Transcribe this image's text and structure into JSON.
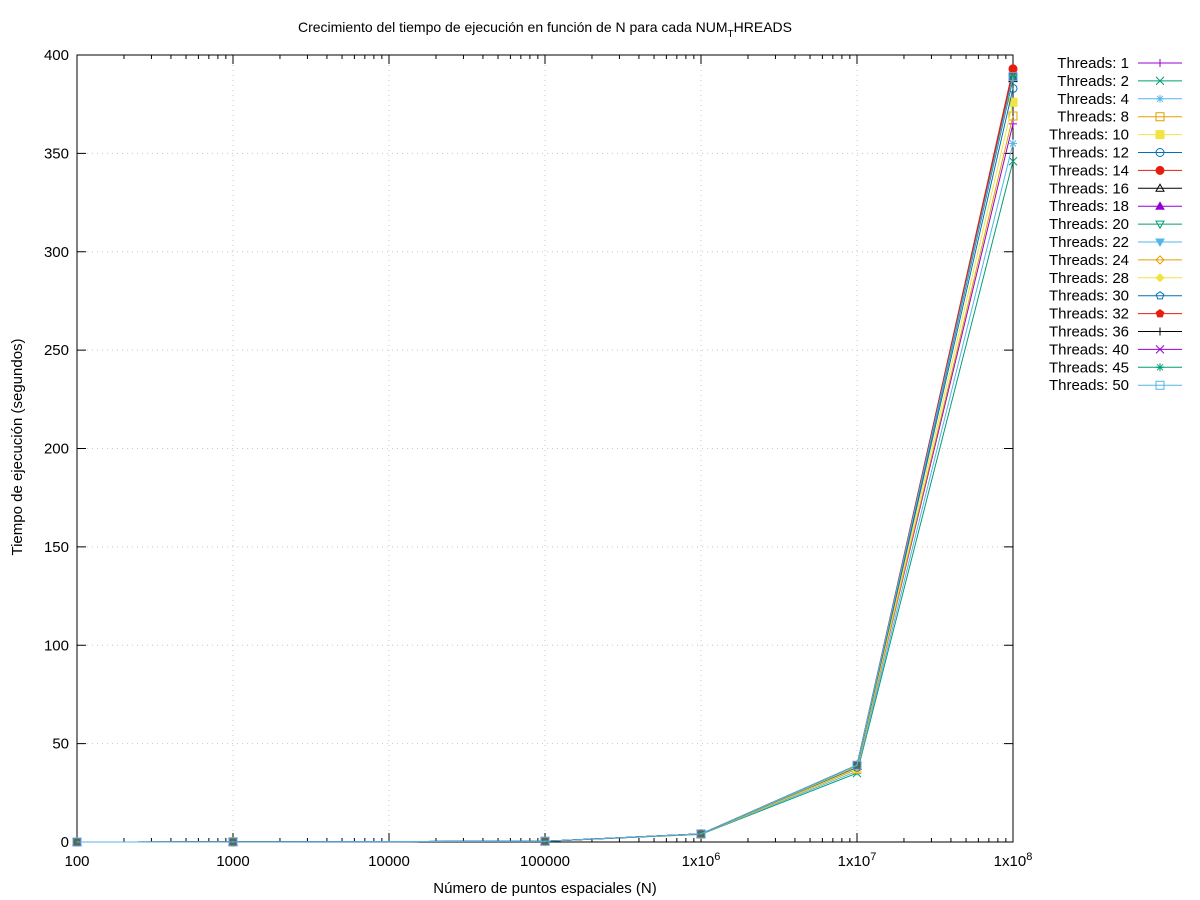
{
  "chart_data": {
    "type": "line",
    "title": {
      "main": "Crecimiento del tiempo de ejecución en función de N para cada NUM",
      "sub": "T",
      "rest": "HREADS"
    },
    "xlabel": "Número de puntos espaciales (N)",
    "ylabel": "Tiempo de ejecución (segundos)",
    "x_scale": "log",
    "xlim": [
      100,
      100000000
    ],
    "ylim": [
      0,
      400
    ],
    "grid": true,
    "legend_position": "outside-top-right",
    "x_ticks": [
      {
        "value": 100,
        "label": "100"
      },
      {
        "value": 1000,
        "label": "1000"
      },
      {
        "value": 10000,
        "label": "10000"
      },
      {
        "value": 100000,
        "label": "100000"
      },
      {
        "value": 1000000,
        "label": "1x10",
        "exp": "6"
      },
      {
        "value": 10000000,
        "label": "1x10",
        "exp": "7"
      },
      {
        "value": 100000000,
        "label": "1x10",
        "exp": "8"
      }
    ],
    "y_ticks": [
      {
        "value": 0,
        "label": "0"
      },
      {
        "value": 50,
        "label": "50"
      },
      {
        "value": 100,
        "label": "100"
      },
      {
        "value": 150,
        "label": "150"
      },
      {
        "value": 200,
        "label": "200"
      },
      {
        "value": 250,
        "label": "250"
      },
      {
        "value": 300,
        "label": "300"
      },
      {
        "value": 350,
        "label": "350"
      },
      {
        "value": 400,
        "label": "400"
      }
    ],
    "x": [
      100,
      1000,
      100000,
      1000000,
      10000000,
      100000000
    ],
    "series": [
      {
        "name": "Threads: 1",
        "color": "#9400d3",
        "marker": "plus",
        "values": [
          0.02,
          0.05,
          0.4,
          4.0,
          37.5,
          365
        ]
      },
      {
        "name": "Threads: 2",
        "color": "#009e73",
        "marker": "cross",
        "values": [
          0.02,
          0.05,
          0.4,
          3.9,
          35.0,
          346
        ]
      },
      {
        "name": "Threads: 4",
        "color": "#56b4e9",
        "marker": "asterisk",
        "values": [
          0.02,
          0.05,
          0.4,
          4.0,
          36.0,
          355
        ]
      },
      {
        "name": "Threads: 8",
        "color": "#e69f00",
        "marker": "square-open",
        "values": [
          0.02,
          0.05,
          0.4,
          4.0,
          37.0,
          369
        ]
      },
      {
        "name": "Threads: 10",
        "color": "#f0e442",
        "marker": "square-filled",
        "values": [
          0.02,
          0.05,
          0.4,
          4.0,
          37.5,
          376
        ]
      },
      {
        "name": "Threads: 12",
        "color": "#0072b2",
        "marker": "circle-open",
        "values": [
          0.02,
          0.05,
          0.4,
          4.1,
          38.0,
          383
        ]
      },
      {
        "name": "Threads: 14",
        "color": "#e51e10",
        "marker": "circle-filled",
        "values": [
          0.02,
          0.05,
          0.4,
          4.1,
          39.0,
          393
        ]
      },
      {
        "name": "Threads: 16",
        "color": "#000000",
        "marker": "triangle-open",
        "values": [
          0.02,
          0.05,
          0.4,
          4.1,
          38.5,
          388
        ]
      },
      {
        "name": "Threads: 18",
        "color": "#9400d3",
        "marker": "triangle-filled",
        "values": [
          0.02,
          0.05,
          0.4,
          4.1,
          38.5,
          389
        ]
      },
      {
        "name": "Threads: 20",
        "color": "#009e73",
        "marker": "itriangle-open",
        "values": [
          0.02,
          0.05,
          0.4,
          4.1,
          38.5,
          388
        ]
      },
      {
        "name": "Threads: 22",
        "color": "#56b4e9",
        "marker": "itriangle-filled",
        "values": [
          0.02,
          0.05,
          0.4,
          4.1,
          38.5,
          389
        ]
      },
      {
        "name": "Threads: 24",
        "color": "#e69f00",
        "marker": "diamond-open",
        "values": [
          0.02,
          0.05,
          0.4,
          4.1,
          38.5,
          390
        ]
      },
      {
        "name": "Threads: 28",
        "color": "#f0e442",
        "marker": "diamond-filled",
        "values": [
          0.02,
          0.05,
          0.4,
          4.1,
          38.5,
          390
        ]
      },
      {
        "name": "Threads: 30",
        "color": "#0072b2",
        "marker": "pentagon-open",
        "values": [
          0.02,
          0.05,
          0.4,
          4.1,
          39.0,
          390
        ]
      },
      {
        "name": "Threads: 32",
        "color": "#e51e10",
        "marker": "pentagon-filled",
        "values": [
          0.02,
          0.05,
          0.4,
          4.1,
          39.0,
          392
        ]
      },
      {
        "name": "Threads: 36",
        "color": "#000000",
        "marker": "plus",
        "values": [
          0.02,
          0.05,
          0.4,
          4.1,
          39.0,
          389
        ]
      },
      {
        "name": "Threads: 40",
        "color": "#9400d3",
        "marker": "cross",
        "values": [
          0.02,
          0.05,
          0.4,
          4.1,
          39.0,
          389
        ]
      },
      {
        "name": "Threads: 45",
        "color": "#009e73",
        "marker": "asterisk",
        "values": [
          0.02,
          0.05,
          0.4,
          4.1,
          39.0,
          389
        ]
      },
      {
        "name": "Threads: 50",
        "color": "#56b4e9",
        "marker": "square-open",
        "values": [
          0.02,
          0.05,
          0.4,
          4.1,
          39.0,
          389
        ]
      }
    ]
  }
}
